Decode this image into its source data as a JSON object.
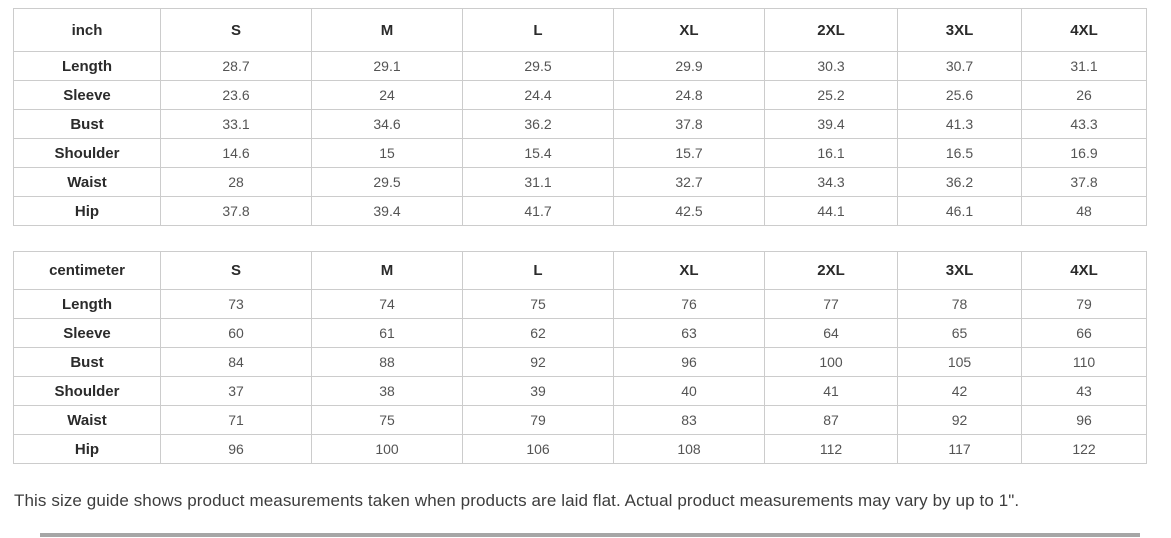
{
  "tables": [
    {
      "unit": "inch",
      "sizes": [
        "S",
        "M",
        "L",
        "XL",
        "2XL",
        "3XL",
        "4XL"
      ],
      "rows": [
        {
          "label": "Length",
          "values": [
            "28.7",
            "29.1",
            "29.5",
            "29.9",
            "30.3",
            "30.7",
            "31.1"
          ]
        },
        {
          "label": "Sleeve",
          "values": [
            "23.6",
            "24",
            "24.4",
            "24.8",
            "25.2",
            "25.6",
            "26"
          ]
        },
        {
          "label": "Bust",
          "values": [
            "33.1",
            "34.6",
            "36.2",
            "37.8",
            "39.4",
            "41.3",
            "43.3"
          ]
        },
        {
          "label": "Shoulder",
          "values": [
            "14.6",
            "15",
            "15.4",
            "15.7",
            "16.1",
            "16.5",
            "16.9"
          ]
        },
        {
          "label": "Waist",
          "values": [
            "28",
            "29.5",
            "31.1",
            "32.7",
            "34.3",
            "36.2",
            "37.8"
          ]
        },
        {
          "label": "Hip",
          "values": [
            "37.8",
            "39.4",
            "41.7",
            "42.5",
            "44.1",
            "46.1",
            "48"
          ]
        }
      ]
    },
    {
      "unit": "centimeter",
      "sizes": [
        "S",
        "M",
        "L",
        "XL",
        "2XL",
        "3XL",
        "4XL"
      ],
      "rows": [
        {
          "label": "Length",
          "values": [
            "73",
            "74",
            "75",
            "76",
            "77",
            "78",
            "79"
          ]
        },
        {
          "label": "Sleeve",
          "values": [
            "60",
            "61",
            "62",
            "63",
            "64",
            "65",
            "66"
          ]
        },
        {
          "label": "Bust",
          "values": [
            "84",
            "88",
            "92",
            "96",
            "100",
            "105",
            "110"
          ]
        },
        {
          "label": "Shoulder",
          "values": [
            "37",
            "38",
            "39",
            "40",
            "41",
            "42",
            "43"
          ]
        },
        {
          "label": "Waist",
          "values": [
            "71",
            "75",
            "79",
            "83",
            "87",
            "92",
            "96"
          ]
        },
        {
          "label": "Hip",
          "values": [
            "96",
            "100",
            "106",
            "108",
            "112",
            "117",
            "122"
          ]
        }
      ]
    }
  ],
  "note": "This size guide shows product measurements taken when products are laid flat. Actual product measurements may vary by up to 1\".",
  "colors": {
    "border": "#cccccc",
    "header_text": "#2b2b2b",
    "value_text": "#545454",
    "note_text": "#3d3d3d",
    "bottom_bar": "#a6a6a6"
  }
}
